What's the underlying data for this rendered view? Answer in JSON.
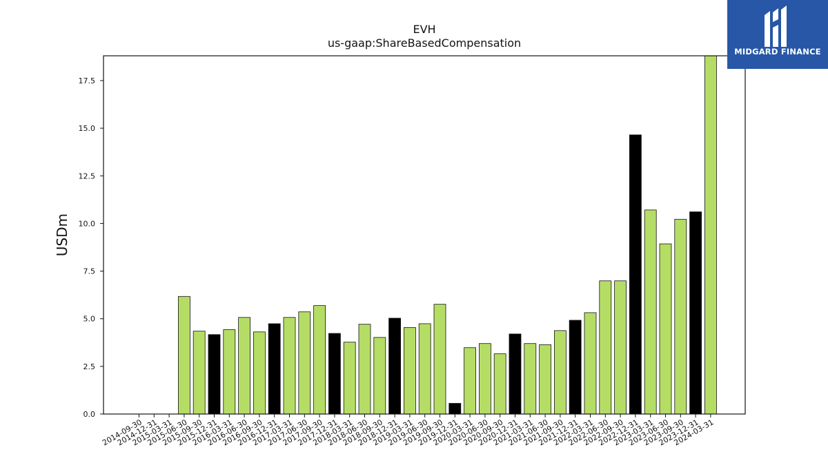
{
  "logo": {
    "text": "MIDGARD FINANCE",
    "icon": "midgard-m-logo-icon",
    "color": "#2757a6"
  },
  "colors": {
    "normal": "#b5dd66",
    "highlight": "#000000",
    "edge": "#111111"
  },
  "chart_data": {
    "type": "bar",
    "title": "EVH",
    "subtitle": "us-gaap:ShareBasedCompensation",
    "xlabel": "",
    "ylabel": "USDm",
    "ylim": [
      0,
      18.8
    ],
    "yticks": [
      "0.0",
      "2.5",
      "5.0",
      "7.5",
      "10.0",
      "12.5",
      "15.0",
      "17.5"
    ],
    "grid": false,
    "categories": [
      "2014-09-30",
      "2014-12-31",
      "2015-03-31",
      "2015-06-30",
      "2015-09-30",
      "2015-12-31",
      "2016-03-31",
      "2016-06-30",
      "2016-09-30",
      "2016-12-31",
      "2017-03-31",
      "2017-06-30",
      "2017-09-30",
      "2017-12-31",
      "2018-03-31",
      "2018-06-30",
      "2018-09-30",
      "2018-12-31",
      "2019-03-31",
      "2019-06-30",
      "2019-09-30",
      "2019-12-31",
      "2020-03-31",
      "2020-06-30",
      "2020-09-30",
      "2020-12-31",
      "2021-03-31",
      "2021-06-30",
      "2021-09-30",
      "2021-12-31",
      "2022-03-31",
      "2022-06-30",
      "2022-09-30",
      "2022-12-31",
      "2023-03-31",
      "2023-06-30",
      "2023-09-30",
      "2023-12-31",
      "2024-03-31"
    ],
    "values": [
      0,
      0,
      0,
      6.17,
      4.35,
      4.17,
      4.43,
      5.07,
      4.31,
      4.74,
      5.07,
      5.36,
      5.69,
      4.23,
      3.77,
      4.71,
      4.02,
      5.03,
      4.54,
      4.74,
      5.76,
      0.56,
      3.48,
      3.7,
      3.16,
      4.2,
      3.7,
      3.64,
      4.38,
      4.92,
      5.32,
      6.99,
      6.99,
      14.65,
      10.71,
      8.93,
      10.22,
      10.61,
      18.8
    ],
    "highlight": [
      false,
      false,
      false,
      false,
      false,
      true,
      false,
      false,
      false,
      true,
      false,
      false,
      false,
      true,
      false,
      false,
      false,
      true,
      false,
      false,
      false,
      true,
      false,
      false,
      false,
      true,
      false,
      false,
      false,
      true,
      false,
      false,
      false,
      true,
      false,
      false,
      false,
      true,
      false
    ]
  }
}
